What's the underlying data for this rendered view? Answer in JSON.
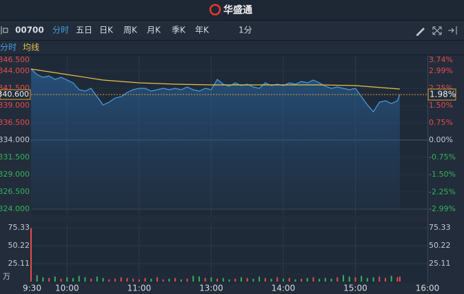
{
  "header": {
    "logo": "华盛通"
  },
  "toolbar": {
    "code": "00700",
    "tabs": [
      "分时",
      "五日",
      "日K",
      "周K",
      "月K",
      "季K",
      "年K"
    ],
    "interval": "1分"
  },
  "chart_data": {
    "type": "line",
    "xticks": [
      "9:30",
      "10:00",
      "11:00",
      "13:00",
      "14:00",
      "15:00",
      "16:00"
    ],
    "ylim": [
      324,
      346.5
    ],
    "yticks": [
      {
        "value": 346.5,
        "label": "346.500"
      },
      {
        "value": 344,
        "label": "344.000"
      },
      {
        "value": 341.5,
        "label": "341.500"
      },
      {
        "value": 339,
        "label": "339.000"
      },
      {
        "value": 336.5,
        "label": "336.500"
      },
      {
        "value": 334,
        "label": "334.000"
      },
      {
        "value": 331.5,
        "label": "331.500"
      },
      {
        "value": 329,
        "label": "329.000"
      },
      {
        "value": 326.5,
        "label": "326.500"
      },
      {
        "value": 324,
        "label": "324.000"
      }
    ],
    "y2lim": [
      -2.99,
      3.74
    ],
    "y2ticks": [
      {
        "value": 3.74,
        "label": "3.74%"
      },
      {
        "value": 2.99,
        "label": "2.99%"
      },
      {
        "value": 2.25,
        "label": "2.25%"
      },
      {
        "value": 1.5,
        "label": "1.50%"
      },
      {
        "value": 0.75,
        "label": "0.75%"
      },
      {
        "value": 0,
        "label": "0.00%"
      },
      {
        "value": -0.75,
        "label": "-0.75%"
      },
      {
        "value": -1.5,
        "label": "-1.50%"
      },
      {
        "value": -2.25,
        "label": "-2.25%"
      },
      {
        "value": -2.99,
        "label": "-2.99%"
      }
    ],
    "last_price": {
      "value": 340.6,
      "label": "340.600"
    },
    "last_change": {
      "value": 1.98,
      "label": "1.98%"
    },
    "series": [
      {
        "name": "分时",
        "color": "#4a9fe0",
        "x": [
          "9:30",
          "9:35",
          "9:40",
          "9:45",
          "9:50",
          "9:55",
          "10:00",
          "10:05",
          "10:10",
          "10:15",
          "10:20",
          "10:25",
          "10:30",
          "10:35",
          "10:40",
          "10:45",
          "10:50",
          "10:55",
          "11:00",
          "11:05",
          "11:10",
          "11:15",
          "11:20",
          "11:25",
          "11:30",
          "11:35",
          "11:40",
          "11:45",
          "11:50",
          "11:55",
          "13:00",
          "13:05",
          "13:10",
          "13:15",
          "13:20",
          "13:25",
          "13:30",
          "13:35",
          "13:40",
          "13:45",
          "13:50",
          "13:55",
          "14:00",
          "14:05",
          "14:10",
          "14:15",
          "14:20",
          "14:25",
          "14:30",
          "14:35",
          "14:40",
          "14:45",
          "14:50",
          "14:55",
          "15:00",
          "15:05",
          "15:10",
          "15:15",
          "15:20",
          "15:25",
          "15:30",
          "15:35",
          "15:37"
        ],
        "values": [
          344.3,
          343.5,
          343.1,
          343.3,
          342.8,
          343.1,
          342.7,
          342.3,
          341.3,
          341.1,
          341.5,
          340.3,
          339.1,
          339.5,
          340.1,
          340.3,
          340.9,
          341.3,
          341.5,
          341.5,
          341.1,
          341.3,
          341.5,
          341.3,
          341.5,
          341.3,
          341.7,
          341.3,
          341.1,
          341.5,
          341.3,
          342.8,
          342.1,
          341.8,
          342.3,
          341.9,
          342.1,
          341.7,
          341.5,
          342.3,
          341.9,
          342.1,
          341.9,
          342.3,
          342.1,
          342.5,
          342.3,
          342.7,
          342.3,
          341.8,
          341.5,
          341.7,
          341.5,
          341.3,
          341.5,
          340.3,
          339.1,
          338.1,
          339.5,
          339.7,
          339.3,
          339.7,
          340.6
        ]
      },
      {
        "name": "均线",
        "color": "#e8c44a",
        "x": [
          "9:30",
          "10:00",
          "10:30",
          "11:00",
          "11:30",
          "13:00",
          "13:30",
          "14:00",
          "14:30",
          "15:00",
          "15:37"
        ],
        "values": [
          344.3,
          343.5,
          342.7,
          342.3,
          342.1,
          342.0,
          342.0,
          342.0,
          342.0,
          341.9,
          341.4
        ]
      }
    ],
    "volume": {
      "unit": "万",
      "ylim": [
        0,
        75.33
      ],
      "yticks": [
        75.33,
        50.22,
        25.11
      ],
      "values": [
        74.8,
        9,
        6,
        5,
        7,
        4,
        6,
        5,
        8,
        6,
        4,
        7,
        5,
        3,
        4,
        6,
        5,
        4,
        3,
        5,
        4,
        6,
        3,
        4,
        5,
        3,
        4,
        8,
        7,
        5,
        6,
        4,
        5,
        3,
        4,
        6,
        5,
        4,
        7,
        5,
        4,
        6,
        4,
        5,
        3,
        4,
        5,
        6,
        4,
        5,
        4,
        6,
        9,
        7,
        6,
        8,
        5,
        6,
        7,
        5,
        8,
        6,
        7
      ]
    }
  }
}
